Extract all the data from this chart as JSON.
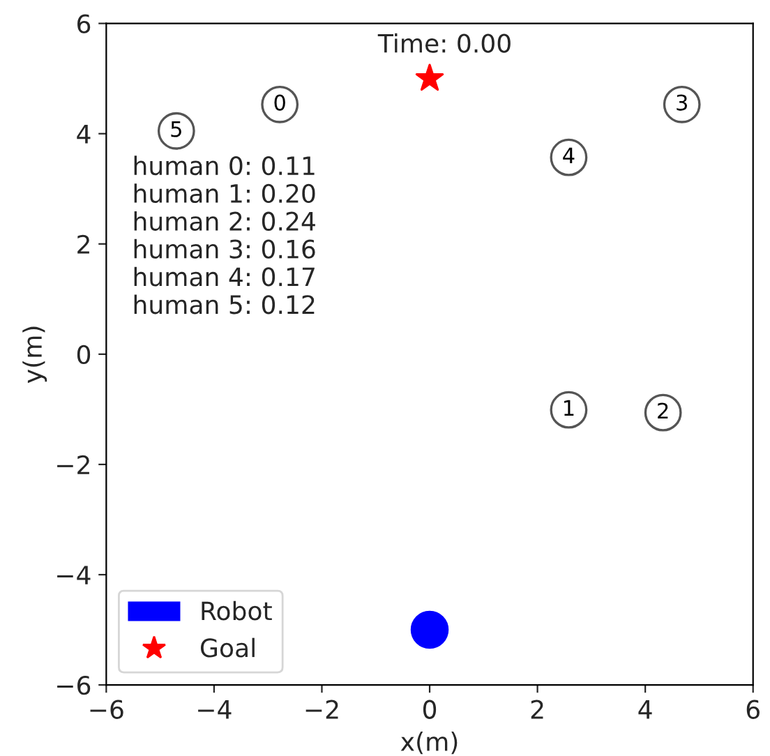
{
  "chart_data": {
    "type": "scatter",
    "xlabel": "x(m)",
    "ylabel": "y(m)",
    "xlim": [
      -6,
      6
    ],
    "ylim": [
      -6,
      6
    ],
    "xticks": [
      {
        "value": -6,
        "label": "−6"
      },
      {
        "value": -4,
        "label": "−4"
      },
      {
        "value": -2,
        "label": "−2"
      },
      0,
      2,
      4,
      6
    ],
    "yticks": [
      {
        "value": -6,
        "label": "−6"
      },
      {
        "value": -4,
        "label": "−4"
      },
      {
        "value": -2,
        "label": "−2"
      },
      0,
      2,
      4,
      6
    ],
    "series": [
      {
        "color": "#555555",
        "marker": "circle",
        "x": [
          -2.78,
          2.58,
          4.33,
          4.68,
          2.58,
          -4.7
        ],
        "values": [
          4.53,
          -1.01,
          -1.06,
          4.53,
          3.57,
          4.05
        ]
      },
      {
        "name": "Robot",
        "color": "#0000ff",
        "marker": "circle",
        "x": [
          0
        ],
        "values": [
          -5.0
        ]
      },
      {
        "name": "Goal",
        "color": "#ff0000",
        "marker": "star",
        "x": [
          0
        ],
        "values": [
          5.0
        ]
      }
    ],
    "legend": "bottom left",
    "grid": false,
    "annotations": [
      "human 0: 0.11",
      "human 1: 0.20",
      "human 2: 0.24",
      "human 3: 0.16",
      "human 4: 0.17",
      "human 5: 0.12",
      "Time: 0.00",
      {
        "text": "0",
        "x": -2.78,
        "y": 4.53
      },
      {
        "text": "1",
        "x": 2.58,
        "y": -1.01
      },
      {
        "text": "2",
        "x": 4.33,
        "y": -1.06
      },
      {
        "text": "3",
        "x": 4.68,
        "y": 4.53
      },
      {
        "text": "4",
        "x": 2.58,
        "y": 3.57
      },
      {
        "text": "5",
        "x": -4.7,
        "y": 4.05
      }
    ]
  }
}
